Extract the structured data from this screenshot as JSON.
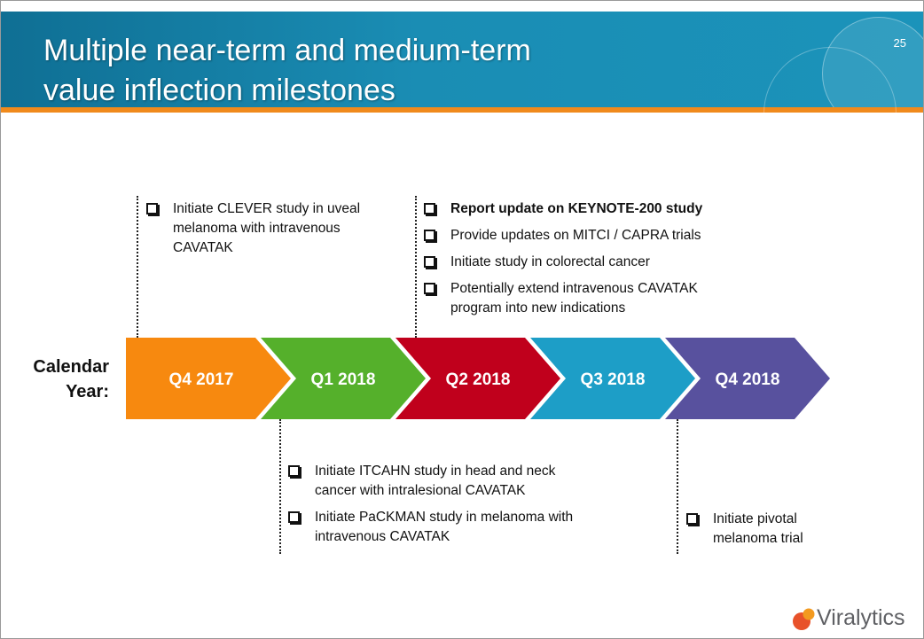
{
  "header": {
    "title_line1": "Multiple near-term and medium-term",
    "title_line2": "value inflection milestones",
    "page_number": "25"
  },
  "timeline": {
    "row_label_line1": "Calendar",
    "row_label_line2": "Year:",
    "periods": [
      {
        "label": "Q4 2017",
        "color": "#f7890f"
      },
      {
        "label": "Q1 2018",
        "color": "#55b02b"
      },
      {
        "label": "Q2 2018",
        "color": "#c0001c"
      },
      {
        "label": "Q3 2018",
        "color": "#1d9ec7"
      },
      {
        "label": "Q4 2018",
        "color": "#58519e"
      }
    ]
  },
  "milestones": {
    "q4_2017": [
      {
        "text": "Initiate CLEVER study in uveal melanoma with intravenous CAVATAK",
        "bold": false
      }
    ],
    "q2_2018": [
      {
        "text": "Report update on KEYNOTE-200 study",
        "bold": true
      },
      {
        "text": "Provide updates on MITCI / CAPRA trials",
        "bold": false
      },
      {
        "text": "Initiate study in colorectal cancer",
        "bold": false
      },
      {
        "text": "Potentially extend intravenous CAVATAK program into new indications",
        "bold": false
      }
    ],
    "q1_2018": [
      {
        "text": "Initiate ITCAHN study in head and neck cancer with intralesional CAVATAK",
        "bold": false
      },
      {
        "text": "Initiate PaCKMAN study in melanoma with intravenous CAVATAK",
        "bold": false
      }
    ],
    "q4_2018": [
      {
        "text": "Initiate pivotal melanoma trial",
        "bold": false
      }
    ]
  },
  "logo": {
    "name": "Viralytics",
    "icon": "viralytics-logo-mark",
    "colors": [
      "#e8522a",
      "#f39a1f"
    ]
  },
  "colors": {
    "header_band": "#1a8db4",
    "header_rule": "#f08a1c"
  }
}
